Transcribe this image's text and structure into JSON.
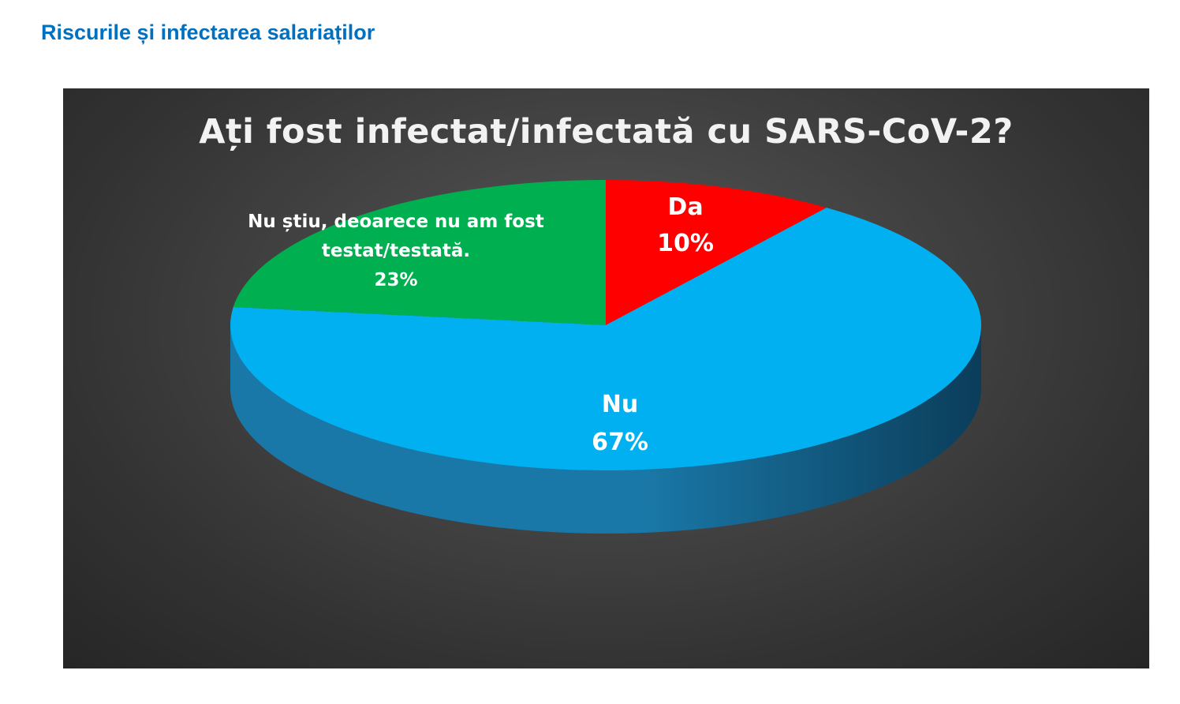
{
  "page": {
    "heading": "Riscurile și infectarea salariaților"
  },
  "chart_data": {
    "type": "pie",
    "style": "3d",
    "title": "Ați fost infectat/infectată cu SARS-CoV-2?",
    "legend": "none",
    "slices": [
      {
        "label": "Da",
        "value": 10,
        "value_label": "10%",
        "color": "#ff0000",
        "side_color": "#a30000"
      },
      {
        "label": "Nu",
        "value": 67,
        "value_label": "67%",
        "color": "#00b0f0",
        "side_color": "#1a78a8"
      },
      {
        "label": "Nu știu, deoarece nu am fost testat/testată.",
        "label_lines": [
          "Nu știu, deoarece nu am fost",
          "testat/testată."
        ],
        "value": 23,
        "value_label": "23%",
        "color": "#00b050",
        "side_color": "#00783a"
      }
    ]
  }
}
